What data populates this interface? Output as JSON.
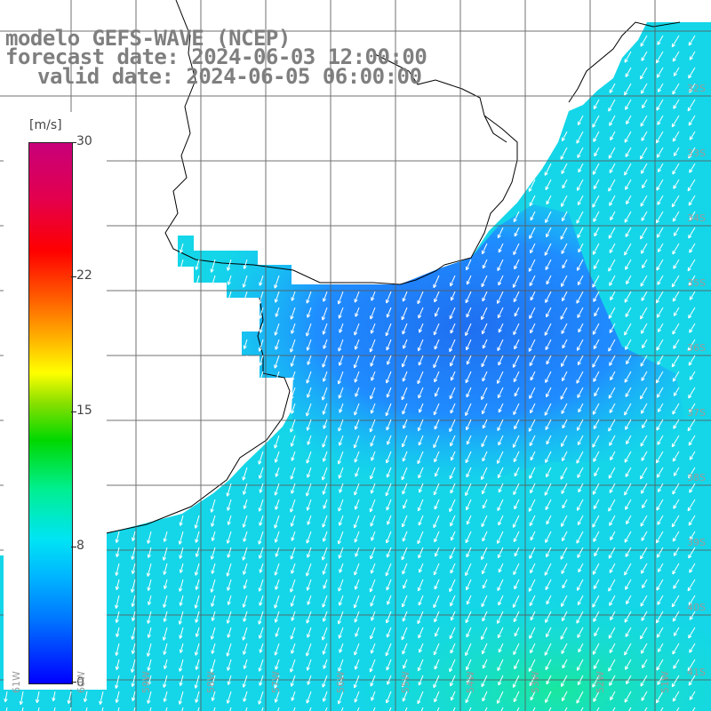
{
  "title": {
    "line1": "modelo GEFS-WAVE (NCEP)",
    "line2": "forecast date: 2024-06-03 12:00:00",
    "line3": "valid date: 2024-06-05 06:00:00"
  },
  "colorbar": {
    "unit": "[m/s]",
    "min": 0,
    "max": 30,
    "ticks": [
      "30",
      "22",
      "15",
      "8",
      "0"
    ],
    "colors": [
      "#0000ff",
      "#0077ff",
      "#00b7ff",
      "#00e4f4",
      "#00ef90",
      "#00d800",
      "#8be000",
      "#ffff00",
      "#ffb000",
      "#ff6000",
      "#ff0000",
      "#c8007a"
    ]
  },
  "map": {
    "land_color": "#ffffff",
    "coastline_color": "#000000",
    "grid_color": "#555555",
    "arrow_color": "#ffffff",
    "lat_labels": [
      "32S",
      "33S",
      "34S",
      "35S",
      "36S",
      "37S",
      "38S",
      "39S",
      "40S",
      "41S"
    ],
    "lon_labels": [
      "61W",
      "60W",
      "59W",
      "58W",
      "57W",
      "56W",
      "55W",
      "54W",
      "53W",
      "52W",
      "51W"
    ],
    "wind_direction": "from north-east toward south-west",
    "typical_speed_ms": [
      4,
      11
    ]
  }
}
